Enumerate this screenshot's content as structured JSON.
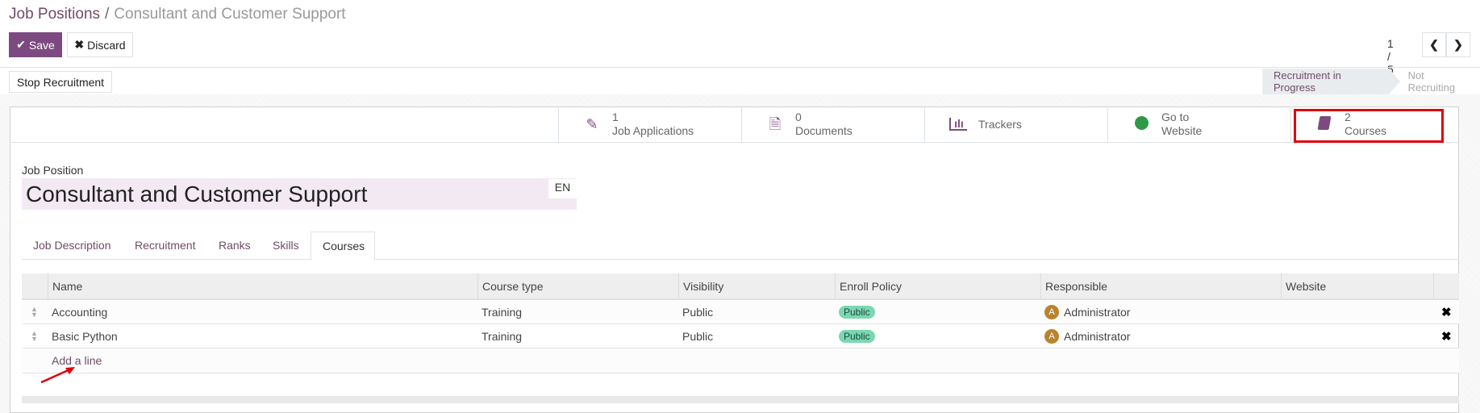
{
  "breadcrumb": {
    "parent": "Job Positions",
    "separator": "/",
    "current": "Consultant and Customer Support"
  },
  "toolbar": {
    "save": "Save",
    "discard": "Discard",
    "pager": "1 / 5"
  },
  "actions": {
    "stop_recruitment": "Stop Recruitment"
  },
  "status": {
    "active": "Recruitment in Progress",
    "inactive": "Not Recruiting"
  },
  "smart_buttons": [
    {
      "icon": "pencil-icon",
      "value": "1",
      "label": "Job Applications"
    },
    {
      "icon": "document-icon",
      "value": "0",
      "label": "Documents"
    },
    {
      "icon": "bar-chart-icon",
      "value": "",
      "label": "Trackers"
    },
    {
      "icon": "globe-icon",
      "value": "Go to",
      "label": "Website"
    },
    {
      "icon": "book-icon",
      "value": "2",
      "label": "Courses",
      "highlighted": true
    }
  ],
  "form": {
    "label": "Job Position",
    "title": "Consultant and Customer Support",
    "lang": "EN"
  },
  "tabs": [
    "Job Description",
    "Recruitment",
    "Ranks",
    "Skills",
    "Courses"
  ],
  "active_tab": "Courses",
  "table": {
    "columns": [
      "Name",
      "Course type",
      "Visibility",
      "Enroll Policy",
      "Responsible",
      "Website"
    ],
    "rows": [
      {
        "name": "Accounting",
        "type": "Training",
        "visibility": "Public",
        "enroll": "Public",
        "responsible": "Administrator",
        "avatar": "A",
        "website": ""
      },
      {
        "name": "Basic Python",
        "type": "Training",
        "visibility": "Public",
        "enroll": "Public",
        "responsible": "Administrator",
        "avatar": "A",
        "website": ""
      }
    ],
    "add_line": "Add a line"
  },
  "colors": {
    "primary": "#7c4a80",
    "annotation": "#e0000a",
    "badge": "#7bd7b2",
    "avatar": "#b8842e"
  }
}
